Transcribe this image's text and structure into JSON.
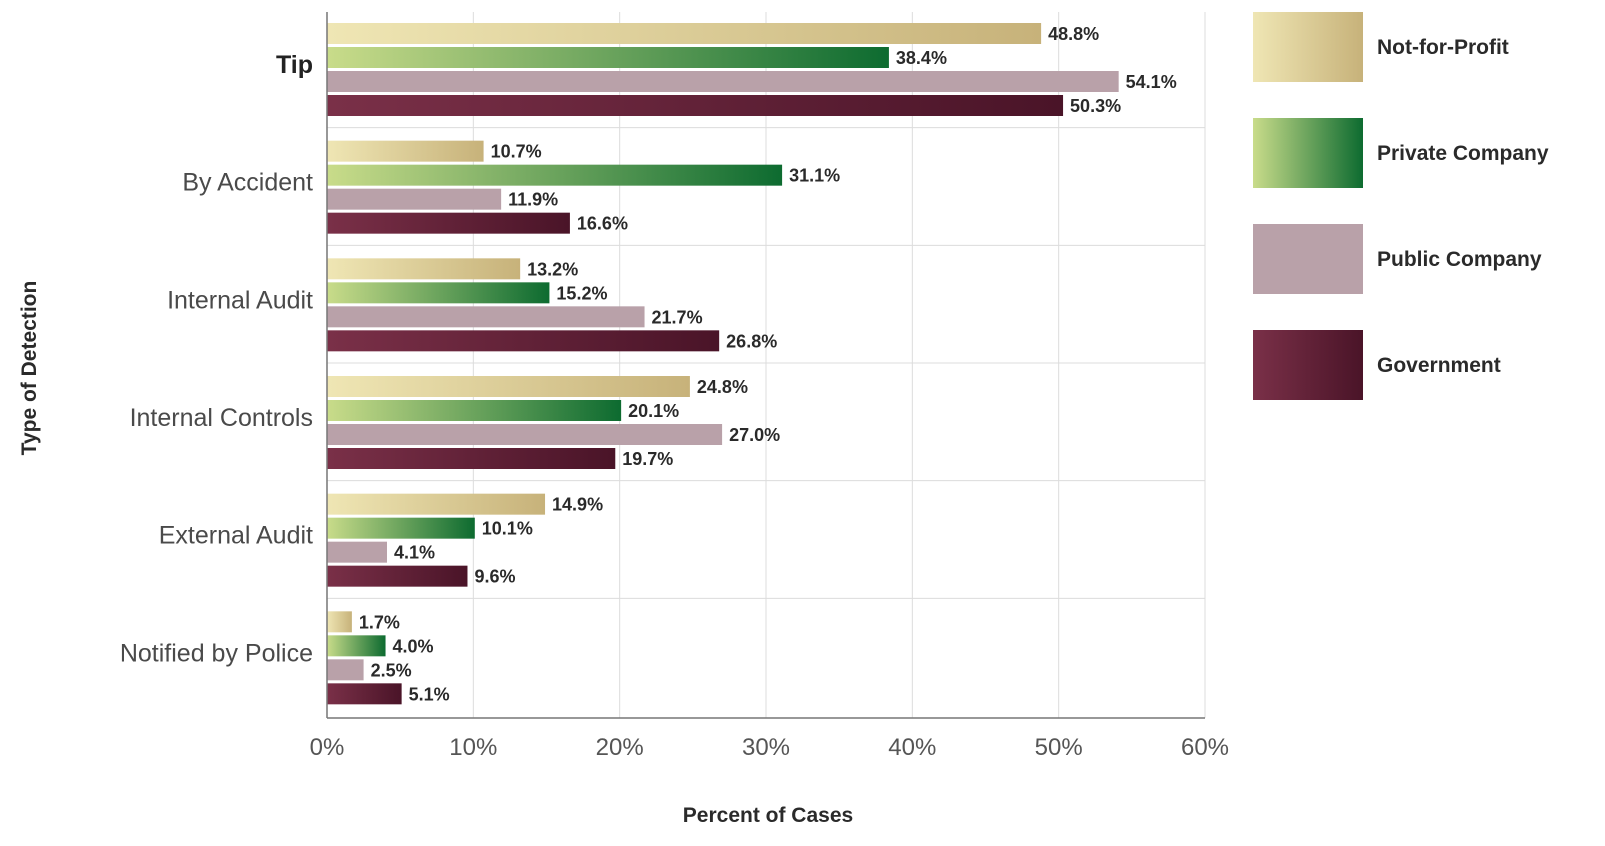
{
  "chart_data": {
    "type": "bar",
    "orientation": "horizontal",
    "title": "",
    "xlabel": "Percent of Cases",
    "ylabel": "Type of Detection",
    "xlim": [
      0,
      60
    ],
    "x_ticks": [
      "0%",
      "10%",
      "20%",
      "30%",
      "40%",
      "50%",
      "60%"
    ],
    "grid": true,
    "legend_position": "right",
    "categories": [
      "Tip",
      "By Accident",
      "Internal Audit",
      "Internal Controls",
      "External Audit",
      "Notified by Police"
    ],
    "series": [
      {
        "name": "Not-for-Profit",
        "values": [
          48.8,
          10.7,
          13.2,
          24.8,
          14.9,
          1.7
        ],
        "labels": [
          "48.8%",
          "10.7%",
          "13.2%",
          "24.8%",
          "14.9%",
          "1.7%"
        ],
        "color_light": "#efe6b4",
        "color_dark": "#c7b27a"
      },
      {
        "name": "Private Company",
        "values": [
          38.4,
          31.1,
          15.2,
          20.1,
          10.1,
          4.0
        ],
        "labels": [
          "38.4%",
          "31.1%",
          "15.2%",
          "20.1%",
          "10.1%",
          "4.0%"
        ],
        "color_light": "#c9dc8a",
        "color_dark": "#0d6b30"
      },
      {
        "name": "Public Company",
        "values": [
          54.1,
          11.9,
          21.7,
          27.0,
          4.1,
          2.5
        ],
        "labels": [
          "54.1%",
          "11.9%",
          "21.7%",
          "27.0%",
          "4.1%",
          "2.5%"
        ],
        "color_light": "#b9a1a9",
        "color_dark": "#b9a1a9"
      },
      {
        "name": "Government",
        "values": [
          50.3,
          16.6,
          26.8,
          19.7,
          9.6,
          5.1
        ],
        "labels": [
          "50.3%",
          "16.6%",
          "26.8%",
          "19.7%",
          "9.6%",
          "5.1%"
        ],
        "color_light": "#7a3048",
        "color_dark": "#4a1428"
      }
    ]
  }
}
